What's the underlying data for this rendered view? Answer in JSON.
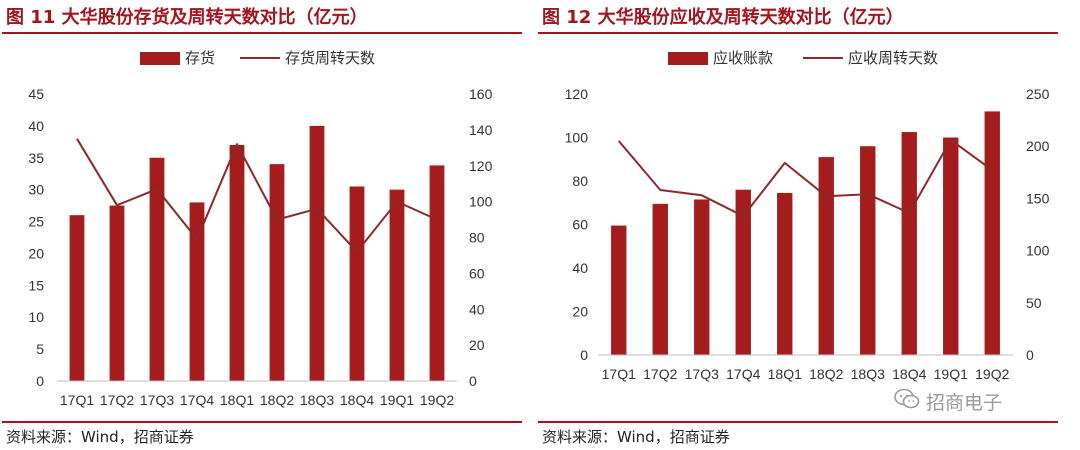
{
  "charts": [
    {
      "title": "图 11  大华股份存货及周转天数对比（亿元）",
      "source": "资料来源：Wind，招商证券"
    },
    {
      "title": "图 12  大华股份应收及周转天数对比（亿元）",
      "source": "资料来源：Wind，招商证券"
    }
  ],
  "watermark": "招商电子",
  "colors": {
    "accent": "#a3141c",
    "bar": "#a51c1c",
    "line": "#8b2a2a"
  },
  "chart_data": [
    {
      "type": "bar",
      "categories": [
        "17Q1",
        "17Q2",
        "17Q3",
        "17Q4",
        "18Q1",
        "18Q2",
        "18Q3",
        "18Q4",
        "19Q1",
        "19Q2"
      ],
      "series": [
        {
          "name": "存货",
          "type": "bar",
          "axis": "left",
          "values": [
            26,
            27.5,
            35,
            28,
            37,
            34,
            40,
            30.5,
            30,
            33.8
          ]
        },
        {
          "name": "存货周转天数",
          "type": "line",
          "axis": "right",
          "values": [
            135,
            98,
            107,
            79,
            132,
            90,
            96,
            72,
            100,
            90
          ]
        }
      ],
      "ylim_left": [
        0,
        45
      ],
      "yticks_left": [
        0,
        5,
        10,
        15,
        20,
        25,
        30,
        35,
        40,
        45
      ],
      "ylim_right": [
        0,
        160
      ],
      "yticks_right": [
        0,
        20,
        40,
        60,
        80,
        100,
        120,
        140,
        160
      ],
      "legend": "top-center",
      "grid": false
    },
    {
      "type": "bar",
      "categories": [
        "17Q1",
        "17Q2",
        "17Q3",
        "17Q4",
        "18Q1",
        "18Q2",
        "18Q3",
        "18Q4",
        "19Q1",
        "19Q2"
      ],
      "series": [
        {
          "name": "应收账款",
          "type": "bar",
          "axis": "left",
          "values": [
            59.5,
            69.5,
            71.5,
            76,
            74.5,
            91,
            96,
            102.5,
            100,
            112
          ]
        },
        {
          "name": "应收周转天数",
          "type": "line",
          "axis": "right",
          "values": [
            205,
            158,
            153,
            133,
            184,
            152,
            154,
            136,
            206,
            177
          ]
        }
      ],
      "ylim_left": [
        0,
        120
      ],
      "yticks_left": [
        0,
        20,
        40,
        60,
        80,
        100,
        120
      ],
      "ylim_right": [
        0,
        250
      ],
      "yticks_right": [
        0,
        50,
        100,
        150,
        200,
        250
      ],
      "legend": "top-center",
      "grid": false
    }
  ]
}
